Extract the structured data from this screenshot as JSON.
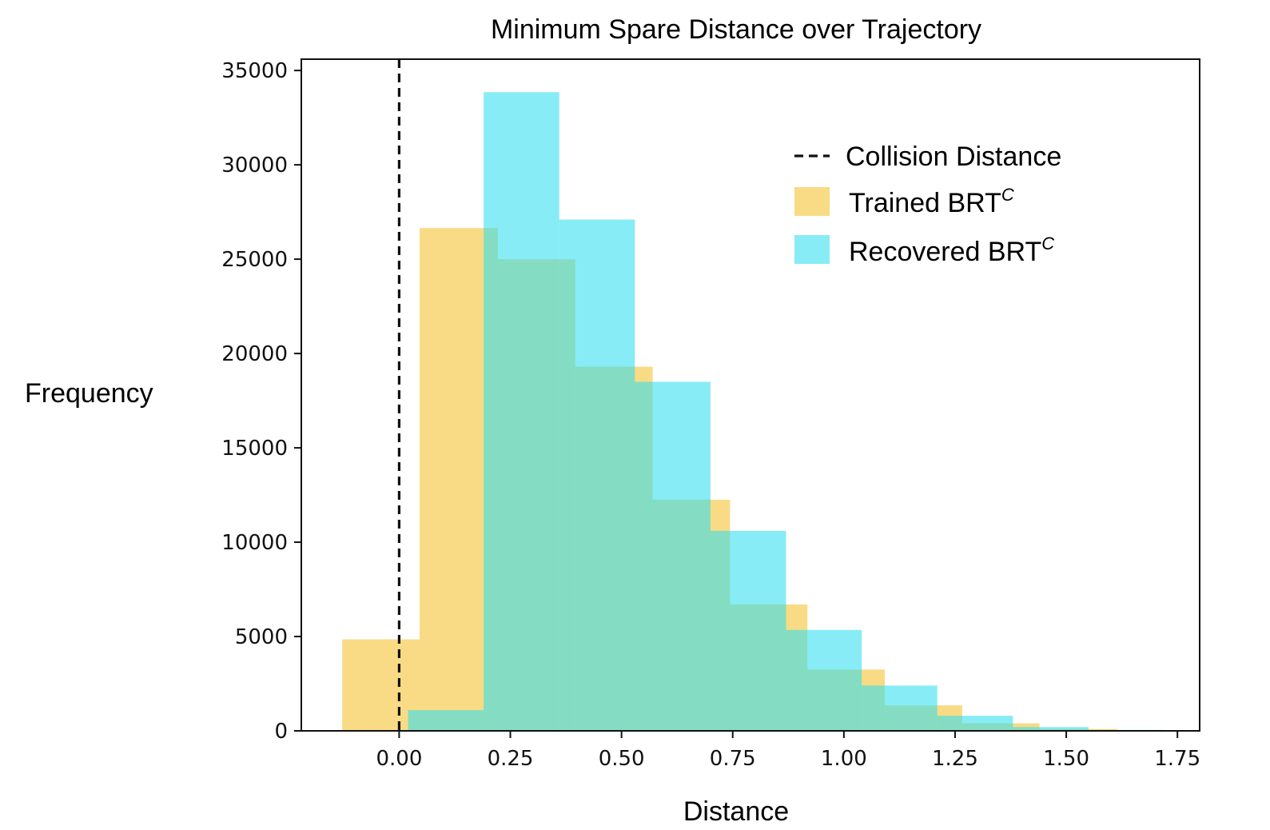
{
  "chart_data": {
    "type": "histogram",
    "title": "Minimum Spare Distance over Trajectory",
    "xlabel": "Distance",
    "ylabel": "Frequency",
    "xlim": [
      -0.22,
      1.8
    ],
    "ylim": [
      0,
      35600
    ],
    "xticks": [
      0.0,
      0.25,
      0.5,
      0.75,
      1.0,
      1.25,
      1.5,
      1.75
    ],
    "xtick_labels": [
      "0.00",
      "0.25",
      "0.50",
      "0.75",
      "1.00",
      "1.25",
      "1.50",
      "1.75"
    ],
    "yticks": [
      0,
      5000,
      10000,
      15000,
      20000,
      25000,
      30000,
      35000
    ],
    "ytick_labels": [
      "0",
      "5000",
      "10000",
      "15000",
      "20000",
      "25000",
      "30000",
      "35000"
    ],
    "vline": {
      "x": 0.0,
      "style": "dashed",
      "color": "#111111",
      "label": "Collision Distance"
    },
    "series": [
      {
        "name": "Trained BRT",
        "name_sup": "C",
        "color": "#f5c842",
        "opacity": 0.65,
        "bins": [
          {
            "x0": -0.128,
            "x1": 0.046,
            "count": 4850
          },
          {
            "x0": 0.046,
            "x1": 0.222,
            "count": 26650
          },
          {
            "x0": 0.222,
            "x1": 0.396,
            "count": 25000
          },
          {
            "x0": 0.396,
            "x1": 0.57,
            "count": 19300
          },
          {
            "x0": 0.57,
            "x1": 0.744,
            "count": 12250
          },
          {
            "x0": 0.744,
            "x1": 0.918,
            "count": 6700
          },
          {
            "x0": 0.918,
            "x1": 1.092,
            "count": 3250
          },
          {
            "x0": 1.092,
            "x1": 1.266,
            "count": 1350
          },
          {
            "x0": 1.266,
            "x1": 1.44,
            "count": 400
          },
          {
            "x0": 1.44,
            "x1": 1.614,
            "count": 100
          }
        ]
      },
      {
        "name": "Recovered BRT",
        "name_sup": "C",
        "color": "#30def0",
        "opacity": 0.58,
        "bins": [
          {
            "x0": 0.02,
            "x1": 0.19,
            "count": 1100
          },
          {
            "x0": 0.19,
            "x1": 0.36,
            "count": 33850
          },
          {
            "x0": 0.36,
            "x1": 0.53,
            "count": 27100
          },
          {
            "x0": 0.53,
            "x1": 0.7,
            "count": 18500
          },
          {
            "x0": 0.7,
            "x1": 0.87,
            "count": 10600
          },
          {
            "x0": 0.87,
            "x1": 1.04,
            "count": 5350
          },
          {
            "x0": 1.04,
            "x1": 1.21,
            "count": 2400
          },
          {
            "x0": 1.21,
            "x1": 1.38,
            "count": 800
          },
          {
            "x0": 1.38,
            "x1": 1.55,
            "count": 200
          },
          {
            "x0": 1.55,
            "x1": 1.72,
            "count": 50
          }
        ]
      }
    ],
    "legend_position": "upper right"
  }
}
